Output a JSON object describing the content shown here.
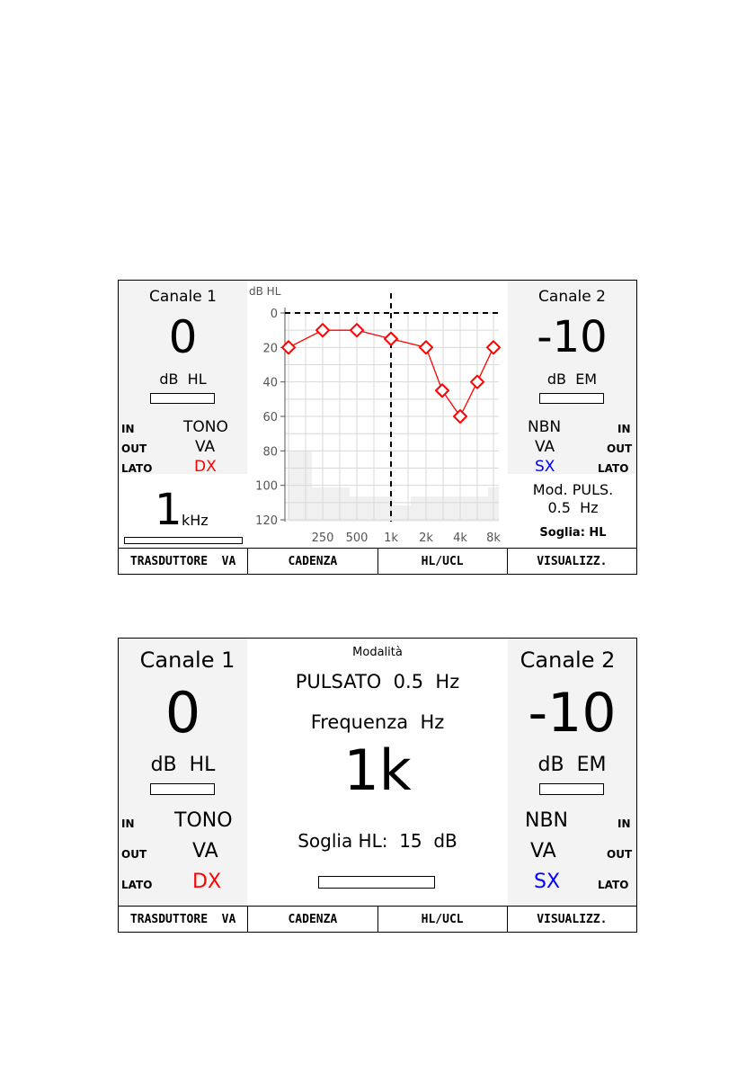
{
  "screen1": {
    "channel1": {
      "title": "Canale 1",
      "level": "0",
      "unit": "dB  HL",
      "in_label": "IN",
      "in_value": "TONO",
      "out_label": "OUT",
      "out_value": "VA",
      "side_label": "LATO",
      "side_value": "DX",
      "freq_value": "1",
      "freq_unit": "kHz"
    },
    "channel2": {
      "title": "Canale 2",
      "level": "-10",
      "unit": "dB  EM",
      "in_value": "NBN",
      "in_label": "IN",
      "out_value": "VA",
      "out_label": "OUT",
      "side_value": "SX",
      "side_label": "LATO",
      "mod_line1": "Mod. PULS.",
      "mod_line2": "0.5  Hz",
      "threshold": "Soglia: HL"
    },
    "audiogram": {
      "ylabel": "dB HL",
      "yticks": [
        "0",
        "20",
        "40",
        "60",
        "80",
        "100",
        "120"
      ],
      "xticks": [
        "250",
        "500",
        "1k",
        "2k",
        "4k",
        "8k"
      ],
      "points": [
        {
          "freq": "125",
          "db": 20
        },
        {
          "freq": "250",
          "db": 10
        },
        {
          "freq": "500",
          "db": 10
        },
        {
          "freq": "1k",
          "db": 15
        },
        {
          "freq": "2k",
          "db": 20
        },
        {
          "freq": "3k",
          "db": 45
        },
        {
          "freq": "4k",
          "db": 60
        },
        {
          "freq": "6k",
          "db": 40
        },
        {
          "freq": "8k",
          "db": 20
        }
      ],
      "color": "#ff0000"
    },
    "softkeys": [
      "TRASDUTTORE  VA",
      "CADENZA",
      "HL/UCL",
      "VISUALIZZ."
    ]
  },
  "screen2": {
    "channel1": {
      "title": "Canale 1",
      "level": "0",
      "unit": "dB  HL",
      "in_label": "IN",
      "in_value": "TONO",
      "out_label": "OUT",
      "out_value": "VA",
      "side_label": "LATO",
      "side_value": "DX"
    },
    "channel2": {
      "title": "Canale 2",
      "level": "-10",
      "unit": "dB  EM",
      "in_value": "NBN",
      "in_label": "IN",
      "out_value": "VA",
      "out_label": "OUT",
      "side_value": "SX",
      "side_label": "LATO"
    },
    "center": {
      "mode_title": "Modalità",
      "mode_value": "PULSATO  0.5  Hz",
      "freq_title": "Frequenza  Hz",
      "freq_value": "1k",
      "threshold": "Soglia HL:  15  dB"
    },
    "softkeys": [
      "TRASDUTTORE  VA",
      "CADENZA",
      "HL/UCL",
      "VISUALIZZ."
    ]
  },
  "colors": {
    "right_ear": "#ff0000",
    "left_ear": "#0000ff",
    "panel_bg": "#f3f3f3"
  }
}
